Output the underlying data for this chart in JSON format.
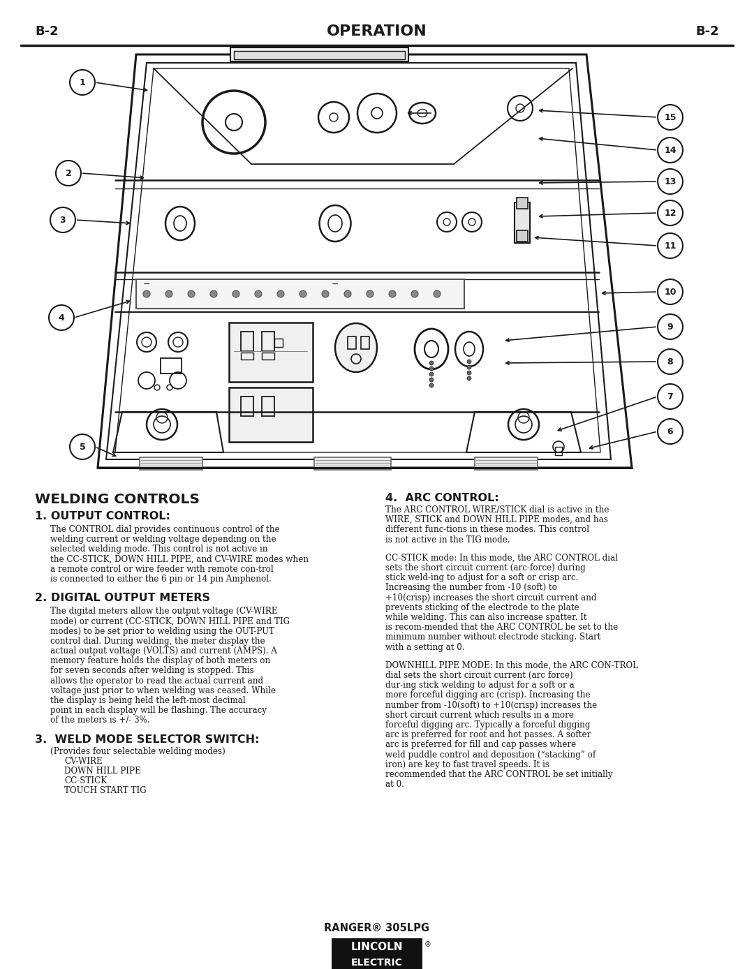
{
  "page_label_left": "B-2",
  "page_label_right": "B-2",
  "page_title": "OPERATION",
  "section_title": "WELDING CONTROLS",
  "s1_title": "1. OUTPUT CONTROL:",
  "s1_body": "The CONTROL dial provides continuous control of the welding current or welding voltage depending on the selected welding mode. This control is not active in the CC-STICK, DOWN HILL PIPE, and CV-WIRE modes when a remote control or wire feeder with remote con-trol is connected to either the 6 pin or 14 pin Amphenol.",
  "s2_title": "2. DIGITAL OUTPUT METERS",
  "s2_body": "The digital meters allow the output voltage (CV-WIRE mode) or current (CC-STICK, DOWN HILL PIPE and TIG modes) to be set prior to welding using the OUT-PUT control dial. During welding, the meter display the actual output voltage (VOLTS) and current (AMPS). A memory feature holds the display of both meters on for seven seconds after welding is stopped. This allows the operator to read the actual current and voltage just prior to when welding was ceased. While the display is being held the left-most decimal point in each display will be flashing. The accuracy of the meters is  +/- 3%.",
  "s3_title": "3.  WELD MODE SELECTOR SWITCH:",
  "s3_sub": "(Provides four selectable welding modes)",
  "s3_items": [
    "CV-WIRE",
    "DOWN HILL PIPE",
    "CC-STICK",
    "TOUCH START TIG"
  ],
  "s4_title": "4.  ARC CONTROL:",
  "s4_body1": "The ARC CONTROL WIRE/STICK dial is active in the WIRE, STICK and DOWN HILL PIPE modes, and has different func-tions in these modes. This control is not active in the TIG mode.",
  "s4_body2": "CC-STICK mode: In this mode, the ARC CONTROL dial sets the short circuit current (arc-force) during stick weld-ing to adjust for a soft or crisp arc. Increasing the number from -10 (soft) to +10(crisp) increases the short circuit current and prevents sticking of the electrode to the plate while welding. This can also increase spatter. It is recom-mended that the ARC CONTROL be set to the minimum number without electrode sticking. Start with a setting at 0.",
  "s4_body3": "DOWNHILL PIPE MODE: In this mode, the ARC CON-TROL dial sets the short circuit current (arc force) dur-ing stick welding to adjust for a soft or a more forceful digging arc (crisp). Increasing the number from -10(soft) to +10(crisp) increases the short circuit current which results in a more forceful digging arc. Typically a forceful digging arc is preferred for root and hot passes. A softer arc is preferred for fill and cap passes where weld puddle control and deposition (“stacking” of iron) are key to fast travel speeds. It is recommended that the ARC CONTROL be set initially at 0.",
  "footer_model": "RANGER® 305LPG",
  "footer_brand_top": "LINCOLN",
  "footer_brand_bot": "ELECTRIC",
  "bg_color": "#ffffff",
  "text_color": "#1a1a1a",
  "header_bar_color": "#1a1a1a",
  "diagram_color": "#1a1a1a"
}
